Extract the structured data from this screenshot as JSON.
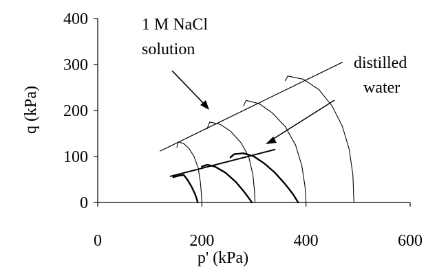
{
  "chart_data": {
    "type": "line",
    "xlabel": "p' (kPa)",
    "ylabel": "q (kPa)",
    "xlim": [
      0,
      600
    ],
    "ylim": [
      0,
      400
    ],
    "x_ticks": [
      0,
      200,
      400,
      600
    ],
    "y_ticks": [
      0,
      100,
      200,
      300,
      400
    ],
    "grid": false,
    "legend": "none",
    "annotations": [
      {
        "id": "nacl",
        "lines": [
          "1 M NaCl",
          "solution"
        ]
      },
      {
        "id": "water",
        "lines": [
          "distilled",
          "water"
        ]
      }
    ],
    "series": [
      {
        "group": "nacl",
        "style": "thin",
        "points": [
          [
            152,
            120
          ],
          [
            155,
            132
          ],
          [
            165,
            128
          ],
          [
            175,
            118
          ],
          [
            185,
            100
          ],
          [
            193,
            75
          ],
          [
            197,
            45
          ],
          [
            199,
            20
          ],
          [
            200,
            0
          ]
        ]
      },
      {
        "group": "nacl",
        "style": "thin",
        "points": [
          [
            210,
            160
          ],
          [
            215,
            175
          ],
          [
            235,
            170
          ],
          [
            255,
            155
          ],
          [
            275,
            130
          ],
          [
            290,
            100
          ],
          [
            298,
            60
          ],
          [
            301,
            25
          ],
          [
            302,
            0
          ]
        ]
      },
      {
        "group": "nacl",
        "style": "thin",
        "points": [
          [
            280,
            210
          ],
          [
            285,
            222
          ],
          [
            310,
            215
          ],
          [
            335,
            195
          ],
          [
            360,
            165
          ],
          [
            380,
            125
          ],
          [
            392,
            80
          ],
          [
            398,
            35
          ],
          [
            400,
            0
          ]
        ]
      },
      {
        "group": "nacl",
        "style": "thin",
        "points": [
          [
            360,
            265
          ],
          [
            365,
            275
          ],
          [
            395,
            268
          ],
          [
            425,
            245
          ],
          [
            450,
            210
          ],
          [
            470,
            165
          ],
          [
            483,
            115
          ],
          [
            490,
            60
          ],
          [
            492,
            0
          ]
        ]
      },
      {
        "group": "nacl",
        "style": "envelope",
        "points": [
          [
            120,
            112
          ],
          [
            470,
            305
          ]
        ]
      },
      {
        "group": "water",
        "style": "thick",
        "points": [
          [
            145,
            55
          ],
          [
            155,
            58
          ],
          [
            165,
            60
          ],
          [
            172,
            50
          ],
          [
            180,
            35
          ],
          [
            187,
            18
          ],
          [
            190,
            8
          ],
          [
            192,
            0
          ]
        ]
      },
      {
        "group": "water",
        "style": "thick",
        "points": [
          [
            200,
            78
          ],
          [
            210,
            82
          ],
          [
            225,
            78
          ],
          [
            245,
            65
          ],
          [
            265,
            45
          ],
          [
            280,
            25
          ],
          [
            290,
            10
          ],
          [
            296,
            0
          ]
        ]
      },
      {
        "group": "water",
        "style": "thick",
        "points": [
          [
            255,
            98
          ],
          [
            262,
            105
          ],
          [
            280,
            107
          ],
          [
            300,
            100
          ],
          [
            320,
            85
          ],
          [
            340,
            65
          ],
          [
            360,
            40
          ],
          [
            375,
            18
          ],
          [
            385,
            0
          ]
        ]
      },
      {
        "group": "water",
        "style": "envelope",
        "points": [
          [
            140,
            57
          ],
          [
            340,
            115
          ]
        ]
      }
    ]
  },
  "labels": {
    "nacl_line1": "1 M NaCl",
    "nacl_line2": "solution",
    "water_line1": "distilled",
    "water_line2": "water"
  }
}
